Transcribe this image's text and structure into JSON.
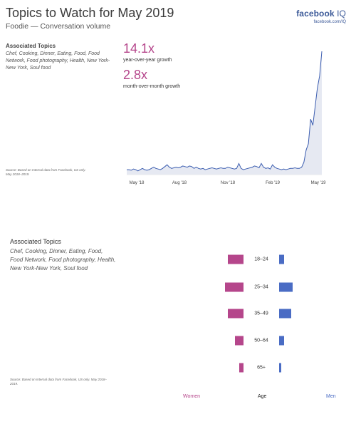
{
  "header": {
    "title": "Topics to Watch for May 2019",
    "subtitle": "Foodie — Conversation volume",
    "brand_main": "facebook",
    "brand_suffix": "IQ",
    "brand_url": "facebook.com/IQ"
  },
  "panel1": {
    "topics_heading": "Associated Topics",
    "topics_text": "Chef, Cooking, Dinner, Eating, Food, Food Network, Food photography, Health, New York-New York, Soul food",
    "source_note": "Source: Based on Internal data from Facebook, US only. May 2018–2019.",
    "stat1_value": "14.1x",
    "stat1_label": "year-over-year growth",
    "stat2_value": "2.8x",
    "stat2_label": "month-over-month growth"
  },
  "panel2": {
    "topics_heading": "Associated Topics",
    "topics_line1": "Chef, Cooking, Dinner, Eating, Food,",
    "topics_line2": "Food Network, Food photography, Health,",
    "topics_line3": "New York-New York, Soul food",
    "source_note": "Source: Based on Internal data from Facebook, US only. May 2018–2019.",
    "legend_women": "Women",
    "legend_age": "Age",
    "legend_men": "Men"
  },
  "colors": {
    "women": "#b5468b",
    "men": "#4a6cc4",
    "line": "#3b5db0",
    "area": "#e6e9f2",
    "accent": "#b5468b"
  },
  "chart_data": [
    {
      "type": "area",
      "title": "",
      "xlabel": "",
      "ylabel": "",
      "x_tick_labels": [
        "May '18",
        "Aug '18",
        "Nov '18",
        "Feb '19",
        "May '19"
      ],
      "grid": false,
      "legend": "none",
      "ylim": [
        0,
        100
      ],
      "series": [
        {
          "values": [
            4,
            4,
            3.5,
            4.5,
            4,
            3,
            4,
            5,
            4,
            3.5,
            4,
            5,
            6,
            5,
            4.5,
            4,
            5,
            6.5,
            8,
            6,
            5,
            5.5,
            6,
            5.5,
            6,
            7,
            6.5,
            6,
            7,
            6.5,
            5,
            6,
            5,
            4.5,
            5,
            4,
            4.5,
            5,
            5.5,
            5,
            4.5,
            5,
            5.5,
            5,
            5,
            6,
            5.5,
            5,
            4.5,
            5,
            9,
            5,
            4,
            4.5,
            5,
            5.5,
            6,
            7,
            6.5,
            5.5,
            9,
            6,
            5,
            5.5,
            4.5,
            8,
            6,
            5,
            4.5,
            4,
            4.5,
            4,
            4.5,
            5,
            5,
            5.5,
            5,
            5,
            6,
            10,
            20,
            25,
            45,
            40,
            55,
            70,
            80,
            100
          ]
        }
      ]
    },
    {
      "type": "bar",
      "title": "",
      "categories": [
        "18–24",
        "25–34",
        "35–49",
        "50–64",
        "65+"
      ],
      "orientation": "horizontal-population-pyramid",
      "legend": "bottom",
      "series": [
        {
          "name": "Women",
          "values": [
            22,
            26,
            22,
            12,
            6
          ]
        },
        {
          "name": "Men",
          "values": [
            7,
            19,
            17,
            7,
            3
          ]
        }
      ]
    }
  ]
}
